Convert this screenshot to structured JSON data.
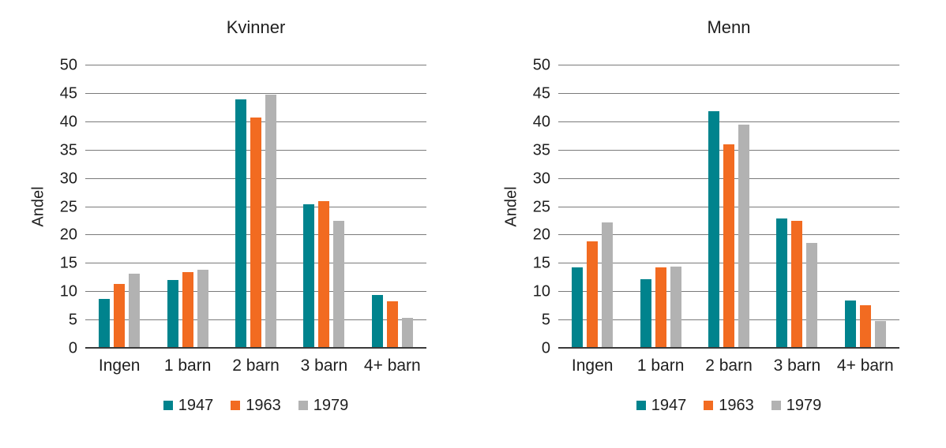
{
  "colors": {
    "series_1947": "#00838D",
    "series_1963": "#F26B21",
    "series_1979": "#B2B2B2",
    "gridline": "#7A7A7A",
    "axis_line": "#3A3A3A",
    "text": "#1F1F1F",
    "background": "#FFFFFF"
  },
  "chart_data": [
    {
      "type": "bar",
      "title": "Kvinner",
      "xlabel": "",
      "ylabel": "Andel",
      "categories": [
        "Ingen",
        "1 barn",
        "2 barn",
        "3 barn",
        "4+ barn"
      ],
      "series": [
        {
          "name": "1947",
          "color": "#00838D",
          "values": [
            8.8,
            12.1,
            44.0,
            25.5,
            9.5
          ]
        },
        {
          "name": "1963",
          "color": "#F26B21",
          "values": [
            11.4,
            13.5,
            40.8,
            26.1,
            8.3
          ]
        },
        {
          "name": "1979",
          "color": "#B2B2B2",
          "values": [
            13.3,
            13.9,
            44.8,
            22.6,
            5.4
          ]
        }
      ],
      "ylim": [
        0,
        50
      ],
      "yticks": [
        0,
        5,
        10,
        15,
        20,
        25,
        30,
        35,
        40,
        45,
        50
      ],
      "grid": true,
      "legend_position": "bottom"
    },
    {
      "type": "bar",
      "title": "Menn",
      "xlabel": "",
      "ylabel": "Andel",
      "categories": [
        "Ingen",
        "1 barn",
        "2 barn",
        "3 barn",
        "4+ barn"
      ],
      "series": [
        {
          "name": "1947",
          "color": "#00838D",
          "values": [
            14.3,
            12.2,
            41.9,
            23.0,
            8.5
          ]
        },
        {
          "name": "1963",
          "color": "#F26B21",
          "values": [
            19.0,
            14.3,
            36.1,
            22.6,
            7.7
          ]
        },
        {
          "name": "1979",
          "color": "#B2B2B2",
          "values": [
            22.3,
            14.5,
            39.6,
            18.6,
            4.9
          ]
        }
      ],
      "ylim": [
        0,
        50
      ],
      "yticks": [
        0,
        5,
        10,
        15,
        20,
        25,
        30,
        35,
        40,
        45,
        50
      ],
      "grid": true,
      "legend_position": "bottom"
    }
  ]
}
